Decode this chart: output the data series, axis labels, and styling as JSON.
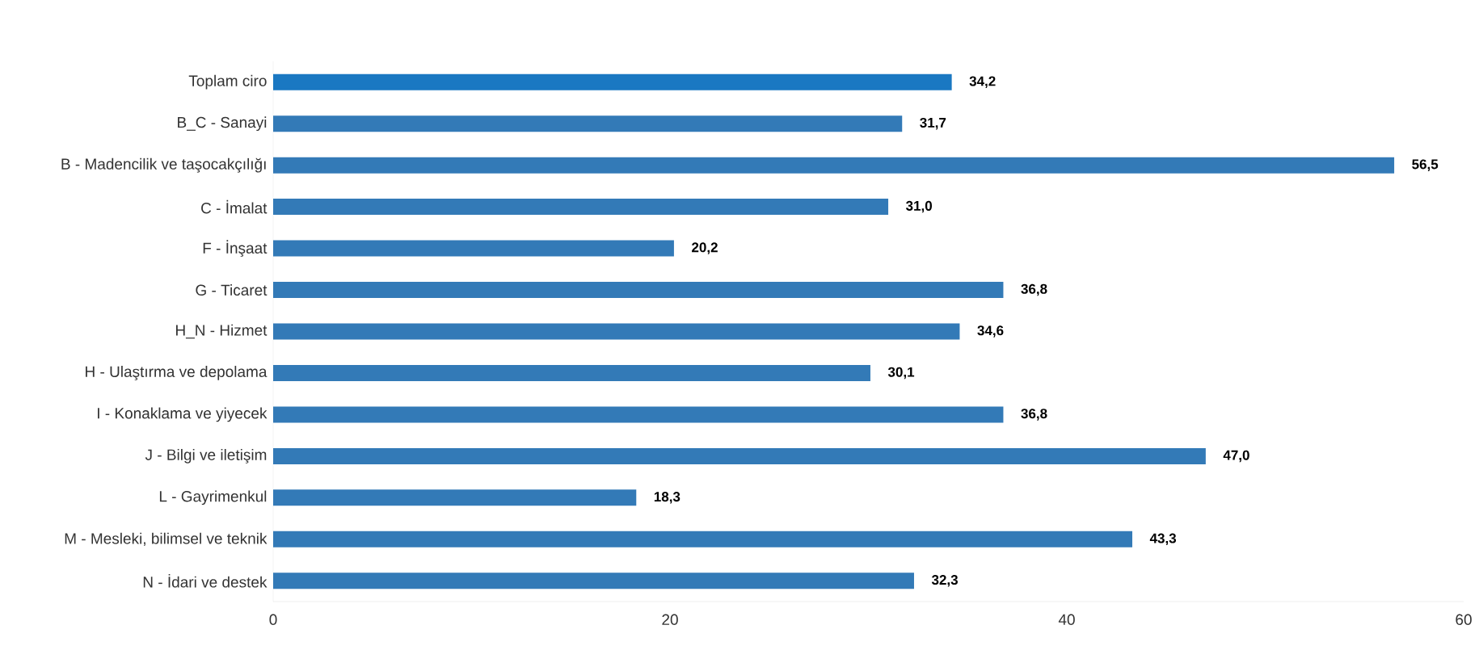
{
  "chart_data": {
    "type": "bar",
    "orientation": "horizontal",
    "categories": [
      "Toplam ciro",
      "B_C - Sanayi",
      "B - Madencilik ve taşocakçılığı",
      "C - İmalat",
      "F - İnşaat",
      "G - Ticaret",
      "H_N - Hizmet",
      "H - Ulaştırma ve depolama",
      "I - Konaklama ve yiyecek",
      "J - Bilgi ve iletişim",
      "L - Gayrimenkul",
      "M - Mesleki, bilimsel ve teknik",
      "N - İdari ve destek"
    ],
    "values": [
      34.2,
      31.7,
      56.5,
      31.0,
      20.2,
      36.8,
      34.6,
      30.1,
      36.8,
      47.0,
      18.3,
      43.3,
      32.3
    ],
    "value_labels": [
      "34,2",
      "31,7",
      "56,5",
      "31,0",
      "20,2",
      "36,8",
      "34,6",
      "30,1",
      "36,8",
      "47,0",
      "18,3",
      "43,3",
      "32,3"
    ],
    "colors": [
      "#1a78c2",
      "#337ab7",
      "#337ab7",
      "#337ab7",
      "#337ab7",
      "#337ab7",
      "#337ab7",
      "#337ab7",
      "#337ab7",
      "#337ab7",
      "#337ab7",
      "#337ab7",
      "#337ab7"
    ],
    "xlim": [
      0,
      60
    ],
    "xticks": [
      0,
      20,
      40,
      60
    ]
  }
}
